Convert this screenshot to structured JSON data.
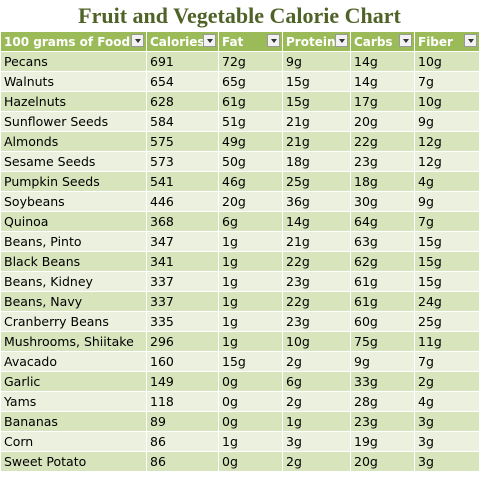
{
  "header": {
    "title": "Fruit and Vegetable Calorie Chart"
  },
  "table": {
    "columns": [
      "100 grams of Food",
      "Calories",
      "Fat",
      "Protein",
      "Carbs",
      "Fiber"
    ],
    "rows": [
      [
        "Pecans",
        691,
        "72g",
        "9g",
        "14g",
        "10g"
      ],
      [
        "Walnuts",
        654,
        "65g",
        "15g",
        "14g",
        "7g"
      ],
      [
        "Hazelnuts",
        628,
        "61g",
        "15g",
        "17g",
        "10g"
      ],
      [
        "Sunflower Seeds",
        584,
        "51g",
        "21g",
        "20g",
        "9g"
      ],
      [
        "Almonds",
        575,
        "49g",
        "21g",
        "22g",
        "12g"
      ],
      [
        "Sesame Seeds",
        573,
        "50g",
        "18g",
        "23g",
        "12g"
      ],
      [
        "Pumpkin Seeds",
        541,
        "46g",
        "25g",
        "18g",
        "4g"
      ],
      [
        "Soybeans",
        446,
        "20g",
        "36g",
        "30g",
        "9g"
      ],
      [
        "Quinoa",
        368,
        "6g",
        "14g",
        "64g",
        "7g"
      ],
      [
        "Beans, Pinto",
        347,
        "1g",
        "21g",
        "63g",
        "15g"
      ],
      [
        "Black Beans",
        341,
        "1g",
        "22g",
        "62g",
        "15g"
      ],
      [
        "Beans, Kidney",
        337,
        "1g",
        "23g",
        "61g",
        "15g"
      ],
      [
        "Beans, Navy",
        337,
        "1g",
        "22g",
        "61g",
        "24g"
      ],
      [
        "Cranberry Beans",
        335,
        "1g",
        "23g",
        "60g",
        "25g"
      ],
      [
        "Mushrooms, Shiitake",
        296,
        "1g",
        "10g",
        "75g",
        "11g"
      ],
      [
        "Avacado",
        160,
        "15g",
        "2g",
        "9g",
        "7g"
      ],
      [
        "Garlic",
        149,
        "0g",
        "6g",
        "33g",
        "2g"
      ],
      [
        "Yams",
        118,
        "0g",
        "2g",
        "28g",
        "4g"
      ],
      [
        "Bananas",
        89,
        "0g",
        "1g",
        "23g",
        "3g"
      ],
      [
        "Corn",
        86,
        "1g",
        "3g",
        "19g",
        "3g"
      ],
      [
        "Sweet Potato",
        86,
        "0g",
        "2g",
        "20g",
        "3g"
      ]
    ]
  }
}
